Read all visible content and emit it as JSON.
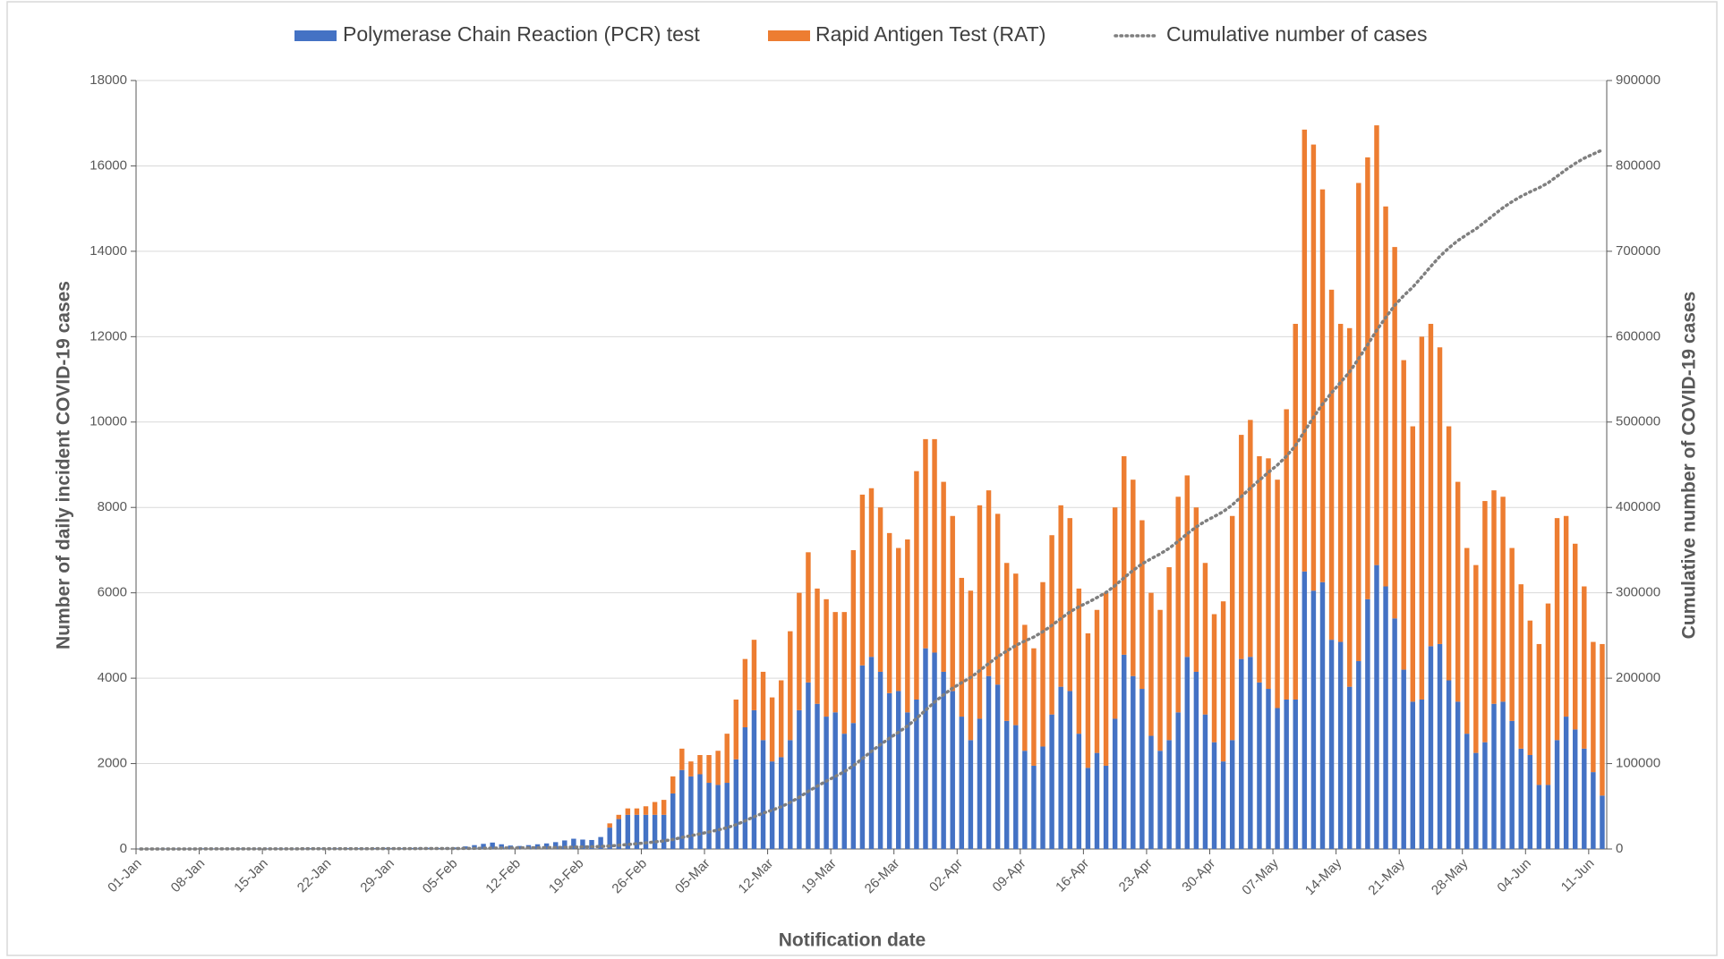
{
  "chart_data": {
    "type": "bar",
    "stacked": true,
    "legend": "top",
    "grid": true,
    "x_label": "Notification date",
    "y_label": "Number of daily incident COVID-19 cases",
    "y2_label": "Cumulative number of COVID-19 cases",
    "categories": [
      "01-Jan",
      null,
      null,
      null,
      null,
      null,
      null,
      "08-Jan",
      null,
      null,
      null,
      null,
      null,
      null,
      "15-Jan",
      null,
      null,
      null,
      null,
      null,
      null,
      "22-Jan",
      null,
      null,
      null,
      null,
      null,
      null,
      "29-Jan",
      null,
      null,
      null,
      null,
      null,
      null,
      "05-Feb",
      null,
      null,
      null,
      null,
      null,
      null,
      "12-Feb",
      null,
      null,
      null,
      null,
      null,
      null,
      "19-Feb",
      null,
      null,
      null,
      null,
      null,
      null,
      "26-Feb",
      null,
      null,
      null,
      null,
      null,
      null,
      "05-Mar",
      null,
      null,
      null,
      null,
      null,
      null,
      "12-Mar",
      null,
      null,
      null,
      null,
      null,
      null,
      "19-Mar",
      null,
      null,
      null,
      null,
      null,
      null,
      "26-Mar",
      null,
      null,
      null,
      null,
      null,
      null,
      "02-Apr",
      null,
      null,
      null,
      null,
      null,
      null,
      "09-Apr",
      null,
      null,
      null,
      null,
      null,
      null,
      "16-Apr",
      null,
      null,
      null,
      null,
      null,
      null,
      "23-Apr",
      null,
      null,
      null,
      null,
      null,
      null,
      "30-Apr",
      null,
      null,
      null,
      null,
      null,
      null,
      "07-May",
      null,
      null,
      null,
      null,
      null,
      null,
      "14-May",
      null,
      null,
      null,
      null,
      null,
      null,
      "21-May",
      null,
      null,
      null,
      null,
      null,
      null,
      "28-May",
      null,
      null,
      null,
      null,
      null,
      null,
      "04-Jun",
      null,
      null,
      null,
      null,
      null,
      null,
      "11-Jun",
      null
    ],
    "series": [
      {
        "name": "Polymerase Chain Reaction (PCR) test",
        "color": "#4472c4",
        "type": "bar",
        "values": [
          10,
          5,
          8,
          12,
          10,
          6,
          9,
          15,
          12,
          8,
          10,
          14,
          11,
          9,
          13,
          16,
          12,
          10,
          14,
          18,
          15,
          12,
          16,
          20,
          18,
          14,
          20,
          25,
          22,
          18,
          24,
          30,
          28,
          22,
          30,
          35,
          60,
          90,
          120,
          150,
          110,
          80,
          70,
          90,
          110,
          130,
          160,
          200,
          240,
          220,
          210,
          280,
          500,
          700,
          800,
          800,
          800,
          800,
          800,
          1300,
          1850,
          1700,
          1750,
          1550,
          1500,
          1550,
          2100,
          2850,
          3250,
          2550,
          2050,
          2150,
          2550,
          3250,
          3900,
          3400,
          3100,
          3200,
          2700,
          2950,
          4300,
          4500,
          4150,
          3650,
          3700,
          3200,
          3500,
          4700,
          4600,
          4150,
          3700,
          3100,
          2550,
          3050,
          4050,
          3850,
          3000,
          2900,
          2300,
          1950,
          2400,
          3150,
          3800,
          3700,
          2700,
          1900,
          2250,
          1950,
          3050,
          4550,
          4050,
          3750,
          2650,
          2300,
          2550,
          3200,
          4500,
          4150,
          3150,
          2500,
          2050,
          2550,
          4450,
          4500,
          3900,
          3750,
          3300,
          3500,
          3500,
          6500,
          6050,
          6250,
          4900,
          4850,
          3800,
          4400,
          5850,
          6650,
          6150,
          5400,
          4200,
          3450,
          3500,
          4750,
          4800,
          3950,
          3450,
          2700,
          2250,
          2500,
          3400,
          3450,
          3000,
          2350,
          2200,
          1500,
          1500,
          2550,
          3100,
          2800,
          2350,
          1800,
          1250
        ]
      },
      {
        "name": "Rapid Antigen Test (RAT)",
        "color": "#ed7d31",
        "type": "bar",
        "values": [
          0,
          0,
          0,
          0,
          0,
          0,
          0,
          0,
          0,
          0,
          0,
          0,
          0,
          0,
          0,
          0,
          0,
          0,
          0,
          0,
          0,
          0,
          0,
          0,
          0,
          0,
          0,
          0,
          0,
          0,
          0,
          0,
          0,
          0,
          0,
          0,
          0,
          0,
          0,
          0,
          0,
          0,
          0,
          0,
          0,
          0,
          0,
          0,
          0,
          0,
          0,
          0,
          100,
          100,
          150,
          150,
          200,
          300,
          350,
          400,
          500,
          350,
          450,
          650,
          800,
          1150,
          1400,
          1600,
          1650,
          1600,
          1500,
          1800,
          2550,
          2750,
          3050,
          2700,
          2750,
          2350,
          2850,
          4050,
          4000,
          3950,
          3850,
          3750,
          3350,
          4050,
          5350,
          4900,
          5000,
          4450,
          4100,
          3250,
          3500,
          5000,
          4350,
          4000,
          3700,
          3550,
          2950,
          2750,
          3850,
          4200,
          4250,
          4050,
          3400,
          3150,
          3350,
          4050,
          4950,
          4650,
          4600,
          3950,
          3350,
          3300,
          4050,
          5050,
          4250,
          3850,
          3550,
          3000,
          3750,
          5250,
          5250,
          5550,
          5300,
          5400,
          5350,
          6800,
          8800,
          10350,
          10450,
          9200,
          8200,
          7450,
          8400,
          11200,
          10350,
          10300,
          8900,
          8700,
          7250,
          6450,
          8500,
          7550,
          6950,
          5950,
          5150,
          4350,
          4400,
          5650,
          5000,
          4800,
          4050,
          3850,
          3150,
          3300,
          4250,
          5200,
          4700,
          4350,
          3800,
          3050,
          3550
        ]
      },
      {
        "name": "Cumulative number of cases",
        "color": "#7f7f7f",
        "type": "line",
        "axis": "y2",
        "values": [
          10,
          15,
          23,
          35,
          45,
          51,
          60,
          75,
          87,
          95,
          105,
          119,
          130,
          139,
          152,
          168,
          180,
          190,
          204,
          222,
          237,
          249,
          265,
          285,
          303,
          317,
          337,
          362,
          384,
          402,
          426,
          456,
          484,
          506,
          536,
          571,
          631,
          721,
          841,
          991,
          1101,
          1181,
          1251,
          1341,
          1451,
          1581,
          1741,
          1941,
          2181,
          2401,
          2611,
          2891,
          3491,
          4291,
          5241,
          6191,
          7191,
          8291,
          9441,
          11141,
          13491,
          15541,
          17741,
          19941,
          22241,
          24941,
          28441,
          32891,
          37791,
          41941,
          45491,
          49441,
          54541,
          60541,
          67491,
          73591,
          79441,
          84991,
          90541,
          97541,
          105841,
          114291,
          122291,
          129691,
          136741,
          143991,
          152841,
          162441,
          172041,
          180641,
          188441,
          194791,
          200841,
          208891,
          217291,
          225141,
          231841,
          238291,
          243541,
          248241,
          254491,
          261841,
          269891,
          277641,
          283741,
          288791,
          294391,
          300391,
          308391,
          317591,
          326241,
          333941,
          339941,
          345541,
          352141,
          360391,
          369141,
          377141,
          383841,
          389341,
          395141,
          402941,
          412641,
          422691,
          431891,
          441041,
          449691,
          459991,
          472291,
          489141,
          505641,
          521091,
          534191,
          546491,
          558691,
          574291,
          590491,
          607441,
          622491,
          636591,
          648041,
          657941,
          669941,
          682241,
          693991,
          703891,
          712491,
          719541,
          726191,
          734341,
          742741,
          750991,
          758041,
          764241,
          769591,
          774391,
          780141,
          787891,
          795691,
          802841,
          808991,
          813841,
          818641
        ]
      }
    ],
    "ylim": [
      0,
      18000
    ],
    "yticks": [
      0,
      2000,
      4000,
      6000,
      8000,
      10000,
      12000,
      14000,
      16000,
      18000
    ],
    "y2lim": [
      0,
      900000
    ],
    "y2ticks": [
      0,
      100000,
      200000,
      300000,
      400000,
      500000,
      600000,
      700000,
      800000,
      900000
    ]
  }
}
